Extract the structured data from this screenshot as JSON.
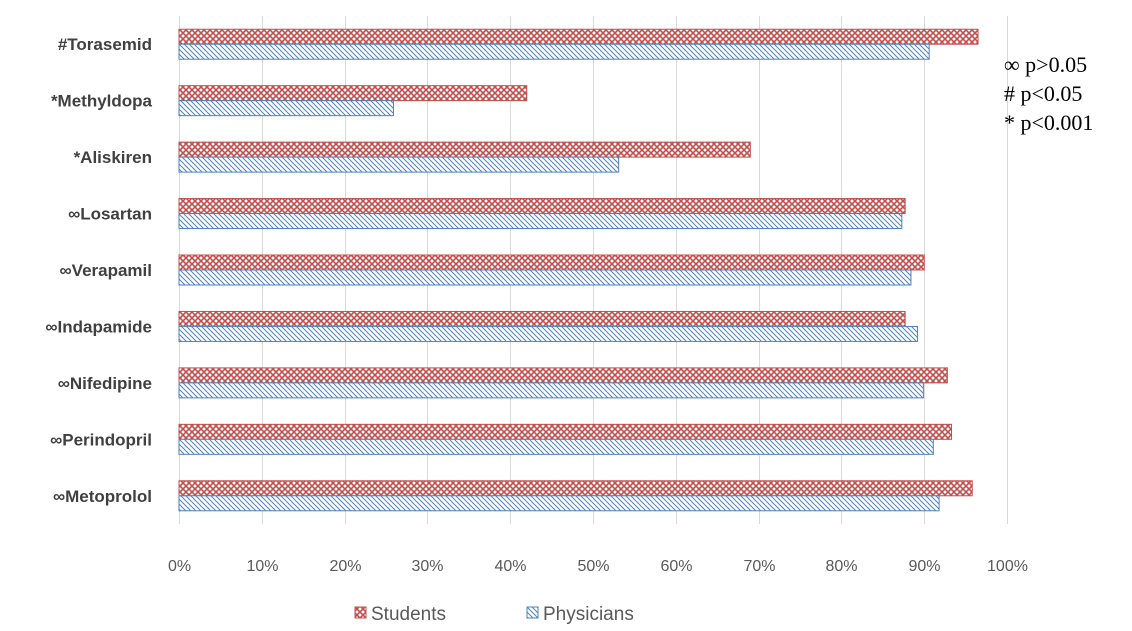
{
  "chart_data": {
    "type": "bar",
    "orientation": "horizontal",
    "categories": [
      "#Torasemid",
      "*Methyldopa",
      "*Aliskiren",
      "∞Losartan",
      "∞Verapamil",
      "∞Indapamide",
      "∞Nifedipine",
      "∞Perindopril",
      "∞Metoprolol"
    ],
    "series": [
      {
        "name": "Students",
        "color": "#c0504d",
        "pattern": "crosshatch",
        "values": [
          96.5,
          42,
          69,
          87.7,
          90,
          87.7,
          92.8,
          93.3,
          95.8
        ]
      },
      {
        "name": "Physicians",
        "color": "#4f81bd",
        "pattern": "diagonal",
        "values": [
          90.6,
          25.9,
          53.1,
          87.3,
          88.4,
          89.2,
          89.9,
          91.1,
          91.8
        ]
      }
    ],
    "xlim": [
      0,
      100
    ],
    "xticks": [
      "0%",
      "10%",
      "20%",
      "30%",
      "40%",
      "50%",
      "60%",
      "70%",
      "80%",
      "90%",
      "100%"
    ],
    "xlabel": "",
    "ylabel": "",
    "grid": true,
    "legend_position": "bottom",
    "annotations": [
      "∞ p>0.05",
      "#  p<0.05",
      "*  p<0.001"
    ]
  }
}
